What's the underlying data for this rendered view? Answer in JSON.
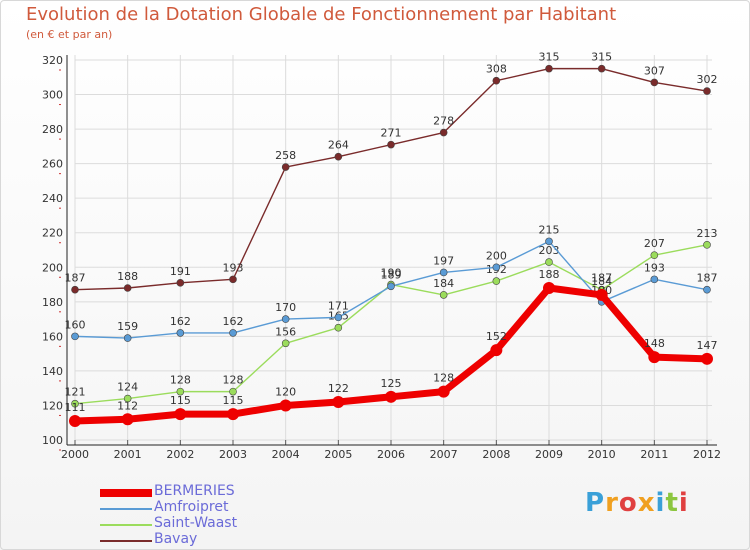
{
  "chart_data": {
    "type": "line",
    "title": "Evolution de la Dotation Globale de Fonctionnement par Habitant",
    "subtitle": "(en € et par an)",
    "categories": [
      "2000",
      "2001",
      "2002",
      "2003",
      "2004",
      "2005",
      "2006",
      "2007",
      "2008",
      "2009",
      "2010",
      "2011",
      "2012"
    ],
    "ylim": [
      100,
      320
    ],
    "yticks": [
      100,
      120,
      140,
      160,
      180,
      200,
      220,
      240,
      260,
      280,
      300,
      320
    ],
    "series": [
      {
        "name": "BERMERIES",
        "color": "#ee0000",
        "values": [
          111,
          112,
          115,
          115,
          120,
          122,
          125,
          128,
          152,
          188,
          184,
          148,
          147
        ],
        "labels": [
          "111",
          "112",
          "115",
          "115",
          "120",
          "122",
          "125",
          "128",
          "152",
          "188",
          "184",
          "148",
          "147"
        ]
      },
      {
        "name": "Amfroipret",
        "color": "#5a9bd5",
        "values": [
          160,
          159,
          162,
          162,
          170,
          171,
          189,
          197,
          200,
          215,
          180,
          193,
          187
        ],
        "labels": [
          "160",
          "159",
          "162",
          "162",
          "170",
          "171",
          "189",
          "197",
          "200",
          "215",
          "180",
          "193",
          "187"
        ]
      },
      {
        "name": "Saint-Waast",
        "color": "#9bdc5c",
        "values": [
          121,
          124,
          128,
          128,
          156,
          165,
          190,
          184,
          192,
          203,
          187,
          207,
          213
        ],
        "labels": [
          "121",
          "124",
          "128",
          "128",
          "156",
          "165",
          "190",
          "184",
          "192",
          "203",
          "187",
          "207",
          "213"
        ]
      },
      {
        "name": "Bavay",
        "color": "#7a2b2b",
        "values": [
          187,
          188,
          191,
          193,
          258,
          264,
          271,
          278,
          308,
          315,
          315,
          307,
          302
        ],
        "labels": [
          "187",
          "188",
          "191",
          "193",
          "258",
          "264",
          "271",
          "278",
          "308",
          "315",
          "315",
          "307",
          "302"
        ]
      }
    ]
  },
  "brand": [
    "P",
    "r",
    "o",
    "x",
    "i",
    "t",
    "i"
  ]
}
